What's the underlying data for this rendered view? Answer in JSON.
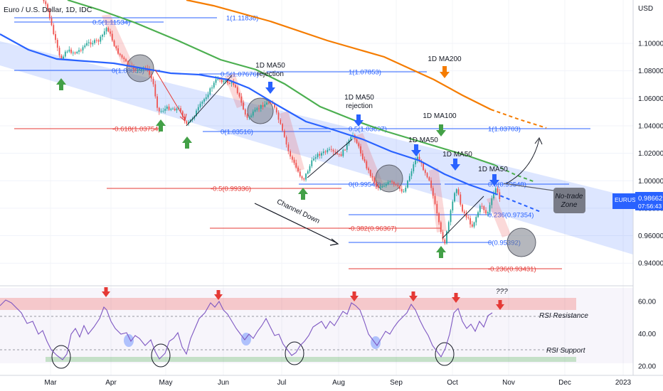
{
  "header": {
    "title": "Euro / U.S. Dollar, 1D, IDC",
    "currency": "USD"
  },
  "price_badge": {
    "symbol": "EURUSD",
    "price": "0.98662",
    "countdown": "07:56:43",
    "color": "#2962ff"
  },
  "chart_data": [
    {
      "type": "line",
      "instrument": "EURUSD",
      "timeframe": "1D",
      "x_axis": {
        "type": "time",
        "labels": [
          "Mar",
          "Apr",
          "May",
          "Jun",
          "Jul",
          "Aug",
          "Sep",
          "Oct",
          "Nov",
          "Dec",
          "2023"
        ]
      },
      "y_axis": {
        "ticks": [
          "1.10000",
          "1.08000",
          "1.06000",
          "1.04000",
          "1.02000",
          "1.00000",
          "0.98000",
          "0.96000",
          "0.94000"
        ],
        "ylim": [
          0.925,
          1.13
        ]
      },
      "price_path": [
        [
          "Feb 20",
          1.135
        ],
        [
          "Feb 28",
          1.125
        ],
        [
          "Mar 03",
          1.11
        ],
        [
          "Mar 07",
          1.088
        ],
        [
          "Mar 10",
          1.095
        ],
        [
          "Mar 15",
          1.093
        ],
        [
          "Mar 21",
          1.1
        ],
        [
          "Mar 27",
          1.102
        ],
        [
          "Mar 31",
          1.112
        ],
        [
          "Apr 05",
          1.095
        ],
        [
          "Apr 12",
          1.083
        ],
        [
          "Apr 18",
          1.08
        ],
        [
          "Apr 21",
          1.083
        ],
        [
          "Apr 25",
          1.072
        ],
        [
          "Apr 28",
          1.05
        ],
        [
          "May 03",
          1.053
        ],
        [
          "May 10",
          1.052
        ],
        [
          "May 13",
          1.04
        ],
        [
          "May 16",
          1.045
        ],
        [
          "May 23",
          1.06
        ],
        [
          "May 30",
          1.075
        ],
        [
          "Jun 01",
          1.073
        ],
        [
          "Jun 08",
          1.07
        ],
        [
          "Jun 14",
          1.045
        ],
        [
          "Jun 22",
          1.055
        ],
        [
          "Jun 27",
          1.058
        ],
        [
          "Jul 01",
          1.042
        ],
        [
          "Jul 06",
          1.02
        ],
        [
          "Jul 12",
          1.004
        ],
        [
          "Jul 14",
          1.001
        ],
        [
          "Jul 20",
          1.018
        ],
        [
          "Jul 28",
          1.022
        ],
        [
          "Aug 03",
          1.018
        ],
        [
          "Aug 10",
          1.034
        ],
        [
          "Aug 17",
          1.01
        ],
        [
          "Aug 23",
          0.995
        ],
        [
          "Aug 30",
          0.999
        ],
        [
          "Sep 06",
          0.992
        ],
        [
          "Sep 13",
          1.018
        ],
        [
          "Sep 20",
          1.0
        ],
        [
          "Sep 26",
          0.961
        ],
        [
          "Sep 28",
          0.955
        ],
        [
          "Oct 04",
          0.997
        ],
        [
          "Oct 07",
          0.98
        ],
        [
          "Oct 13",
          0.967
        ],
        [
          "Oct 18",
          0.983
        ],
        [
          "Oct 21",
          0.975
        ],
        [
          "Oct 26",
          0.995
        ],
        [
          "Oct 28",
          0.9866
        ]
      ],
      "projection": [
        [
          "Oct 28",
          0.9866
        ],
        [
          "Nov 02",
          0.97
        ],
        [
          "Nov 06",
          0.953
        ]
      ]
    },
    {
      "type": "line",
      "name": "RSI",
      "y_axis": {
        "ticks": [
          "60.00",
          "40.00",
          "20.00"
        ],
        "ylim": [
          15,
          68
        ]
      },
      "resistance": 58,
      "support": 26
    }
  ],
  "moving_averages": [
    {
      "name": "1D MA50",
      "color": "#2962ff"
    },
    {
      "name": "1D MA100",
      "color": "#4caf50"
    },
    {
      "name": "1D MA200",
      "color": "#f57c00"
    }
  ],
  "fib_levels": [
    {
      "label": "1(1.11836)",
      "color": "#2962ff"
    },
    {
      "label": "0.5(1.11534)",
      "color": "#2962ff"
    },
    {
      "label": "0(1.08053)",
      "color": "#2962ff"
    },
    {
      "label": "-0.618(1.03754)",
      "color": "#e53935"
    },
    {
      "label": "0.5(1.07676)",
      "color": "#2962ff"
    },
    {
      "label": "1(1.07853)",
      "color": "#2962ff"
    },
    {
      "label": "0(1.03516)",
      "color": "#2962ff"
    },
    {
      "label": "-0.5(0.99336)",
      "color": "#e53935"
    },
    {
      "label": "0.5(1.03697)",
      "color": "#2962ff"
    },
    {
      "label": "1(1.03703)",
      "color": "#2962ff"
    },
    {
      "label": "0(0.99542)",
      "color": "#2962ff"
    },
    {
      "label": "-0.382(0.96367)",
      "color": "#e53935"
    },
    {
      "label": "0.5(0.99548)",
      "color": "#2962ff"
    },
    {
      "label": "0.236(0.97354)",
      "color": "#2962ff"
    },
    {
      "label": "0(0.95392)",
      "color": "#2962ff"
    },
    {
      "label": "-0.236(0.93431)",
      "color": "#e53935"
    }
  ],
  "annotations": {
    "ma50_rejection_1": [
      "1D MA50",
      "rejection"
    ],
    "ma200": "1D MA200",
    "ma50_rejection_2": [
      "1D MA50",
      "rejection"
    ],
    "ma100": "1D MA100",
    "ma50_a": "1D MA50",
    "ma50_b": "1D MA50",
    "ma50_c": "1D MA50",
    "channel": "Channel Down",
    "no_trade": [
      "No-trade",
      "Zone"
    ],
    "rsi_resistance": "RSI Resistance",
    "rsi_support": "RSI Support",
    "question": "???"
  },
  "colors": {
    "channel_fill": "#2962ff",
    "bull": "#26a69a",
    "bear": "#ef5350",
    "rsi_line": "#7e57c2",
    "up_arrow": "#43a047",
    "down_arrow_blue": "#2962ff",
    "down_arrow_red": "#e53935"
  }
}
